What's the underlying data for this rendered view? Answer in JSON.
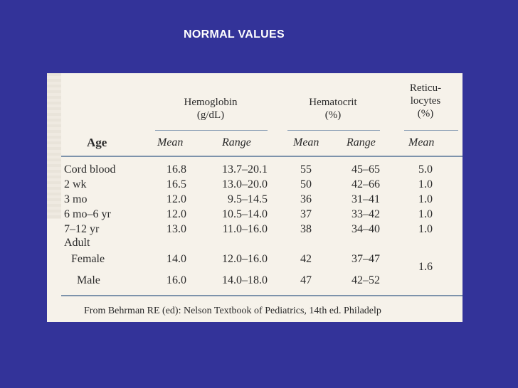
{
  "slide": {
    "title": "NORMAL VALUES"
  },
  "table": {
    "group_headers": {
      "hemoglobin": [
        "Hemoglobin",
        "(g/dL)"
      ],
      "hematocrit": [
        "Hematocrit",
        "(%)"
      ],
      "reticulocytes": [
        "Reticu-",
        "locytes",
        "(%)"
      ]
    },
    "column_headers": {
      "age": "Age",
      "hb_mean": "Mean",
      "hb_range": "Range",
      "hct_mean": "Mean",
      "hct_range": "Range",
      "retic_mean": "Mean"
    },
    "rows": [
      {
        "age": "Cord blood",
        "hb_mean": "16.8",
        "hb_range": "13.7–20.1",
        "hct_mean": "55",
        "hct_range": "45–65",
        "retic_mean": "5.0"
      },
      {
        "age": "2 wk",
        "hb_mean": "16.5",
        "hb_range": "13.0–20.0",
        "hct_mean": "50",
        "hct_range": "42–66",
        "retic_mean": "1.0"
      },
      {
        "age": "3 mo",
        "hb_mean": "12.0",
        "hb_range": "9.5–14.5",
        "hct_mean": "36",
        "hct_range": "31–41",
        "retic_mean": "1.0"
      },
      {
        "age": "6 mo–6 yr",
        "hb_mean": "12.0",
        "hb_range": "10.5–14.0",
        "hct_mean": "37",
        "hct_range": "33–42",
        "retic_mean": "1.0"
      },
      {
        "age": "7–12 yr",
        "hb_mean": "13.0",
        "hb_range": "11.0–16.0",
        "hct_mean": "38",
        "hct_range": "34–40",
        "retic_mean": "1.0"
      },
      {
        "age": "Adult",
        "hb_mean": "",
        "hb_range": "",
        "hct_mean": "",
        "hct_range": "",
        "retic_mean": ""
      },
      {
        "age": "Female",
        "hb_mean": "14.0",
        "hb_range": "12.0–16.0",
        "hct_mean": "42",
        "hct_range": "37–47",
        "retic_mean": ""
      },
      {
        "age": "Male",
        "hb_mean": "16.0",
        "hb_range": "14.0–18.0",
        "hct_mean": "47",
        "hct_range": "42–52",
        "retic_mean": ""
      }
    ],
    "adult_retic_mean": "1.6",
    "source": "From Behrman RE (ed): Nelson Textbook of Pediatrics, 14th ed. Philadelp"
  }
}
